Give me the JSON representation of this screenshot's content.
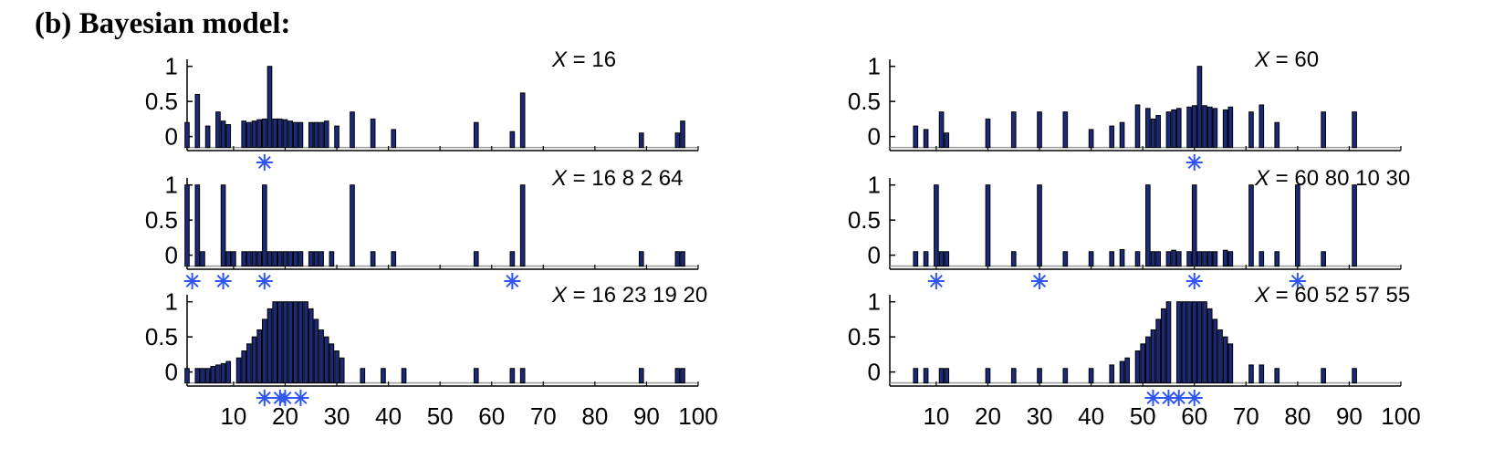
{
  "title": "(b) Bayesian model:",
  "colors": {
    "bar_fill": "#1b2a78",
    "bar_edge": "#000000",
    "star": "#2f56f0",
    "baseline": "#9a9a9a"
  },
  "chart_data": [
    {
      "type": "bar",
      "x_label_var": "X",
      "x_label_eq": "=",
      "numbers": [
        "16"
      ],
      "examples": [
        16
      ],
      "xlim": [
        1,
        100
      ],
      "ylim": [
        -0.2,
        1.1
      ],
      "yticks": [
        "1",
        "0.5",
        "0"
      ],
      "xticks": [],
      "values": [
        0.2,
        0,
        0.6,
        0,
        0.15,
        0,
        0.35,
        0.22,
        0.17,
        0,
        0,
        0.22,
        0.2,
        0.22,
        0.24,
        0.25,
        1,
        0.25,
        0.25,
        0.24,
        0.22,
        0.2,
        0.2,
        0,
        0.2,
        0.2,
        0.2,
        0.22,
        0,
        0.15,
        0,
        0,
        0.35,
        0,
        0,
        0,
        0.25,
        0,
        0,
        0,
        0.1,
        0,
        0,
        0,
        0,
        0,
        0,
        0,
        0,
        0,
        0,
        0,
        0,
        0,
        0,
        0,
        0.2,
        0,
        0,
        0,
        0,
        0,
        0,
        0.07,
        0,
        0.62,
        0,
        0,
        0,
        0,
        0,
        0,
        0,
        0,
        0,
        0,
        0,
        0,
        0,
        0,
        0,
        0,
        0,
        0,
        0,
        0,
        0,
        0,
        0.05,
        0,
        0,
        0,
        0,
        0,
        0,
        0.05,
        0.22,
        0,
        0,
        0
      ]
    },
    {
      "type": "bar",
      "x_label_var": "X",
      "x_label_eq": "=",
      "numbers": [
        "16",
        "8",
        "2",
        "64"
      ],
      "examples": [
        16,
        8,
        2,
        64
      ],
      "xlim": [
        1,
        100
      ],
      "ylim": [
        -0.2,
        1.1
      ],
      "yticks": [
        "1",
        "0.5",
        "0"
      ],
      "xticks": [],
      "values": [
        1,
        0,
        1,
        0.05,
        0,
        0,
        0,
        1,
        0.05,
        0.05,
        0,
        0.05,
        0.05,
        0.05,
        0.05,
        1,
        0.05,
        0.05,
        0.05,
        0.05,
        0.05,
        0.05,
        0.05,
        0,
        0.05,
        0.05,
        0.05,
        0,
        0.05,
        0,
        0,
        0,
        1,
        0,
        0,
        0,
        0.05,
        0,
        0,
        0,
        0.05,
        0,
        0,
        0,
        0,
        0,
        0,
        0,
        0,
        0,
        0,
        0,
        0,
        0,
        0,
        0,
        0.05,
        0,
        0,
        0,
        0,
        0,
        0,
        0.05,
        0,
        1,
        0,
        0,
        0,
        0,
        0,
        0,
        0,
        0,
        0,
        0,
        0,
        0,
        0,
        0,
        0,
        0,
        0,
        0,
        0,
        0,
        0,
        0,
        0.05,
        0,
        0,
        0,
        0,
        0,
        0,
        0.05,
        0.05,
        0,
        0,
        0
      ]
    },
    {
      "type": "bar",
      "x_label_var": "X",
      "x_label_eq": "=",
      "numbers": [
        "16",
        "23",
        "19",
        "20"
      ],
      "examples": [
        16,
        23,
        19,
        20
      ],
      "xlim": [
        1,
        100
      ],
      "ylim": [
        -0.2,
        1.1
      ],
      "yticks": [
        "1",
        "0.5",
        "0"
      ],
      "xticks": [
        "10",
        "20",
        "30",
        "40",
        "50",
        "60",
        "70",
        "80",
        "90",
        "100"
      ],
      "values": [
        0.05,
        0,
        0.05,
        0.05,
        0.05,
        0.08,
        0.1,
        0.12,
        0.15,
        0,
        0.2,
        0.3,
        0.4,
        0.5,
        0.6,
        0.75,
        0.9,
        1,
        1,
        1,
        1,
        1,
        1,
        1,
        0.9,
        0.75,
        0.6,
        0.5,
        0.4,
        0.3,
        0.2,
        0,
        0,
        0,
        0.05,
        0,
        0,
        0,
        0.05,
        0,
        0,
        0,
        0.05,
        0,
        0,
        0,
        0,
        0,
        0,
        0,
        0,
        0,
        0,
        0,
        0,
        0,
        0.05,
        0,
        0,
        0,
        0,
        0,
        0,
        0.05,
        0,
        0.05,
        0,
        0,
        0,
        0,
        0,
        0,
        0,
        0,
        0,
        0,
        0,
        0,
        0,
        0,
        0,
        0,
        0,
        0,
        0,
        0,
        0,
        0,
        0.05,
        0,
        0,
        0,
        0,
        0,
        0,
        0.05,
        0.05,
        0,
        0,
        0
      ]
    },
    {
      "type": "bar",
      "x_label_var": "X",
      "x_label_eq": "=",
      "numbers": [
        "60"
      ],
      "examples": [
        60
      ],
      "xlim": [
        1,
        100
      ],
      "ylim": [
        -0.2,
        1.1
      ],
      "yticks": [
        "1",
        "0.5",
        "0"
      ],
      "xticks": [],
      "values": [
        0,
        0,
        0,
        0,
        0,
        0.15,
        0,
        0.1,
        0,
        0,
        0.35,
        0.05,
        0,
        0,
        0,
        0,
        0,
        0,
        0,
        0.25,
        0,
        0,
        0,
        0,
        0.35,
        0,
        0,
        0,
        0,
        0.35,
        0,
        0,
        0,
        0,
        0.35,
        0,
        0,
        0,
        0,
        0.1,
        0,
        0,
        0,
        0.15,
        0,
        0.2,
        0,
        0,
        0.45,
        0,
        0.4,
        0.25,
        0.3,
        0,
        0.35,
        0.38,
        0.4,
        0,
        0.42,
        0.44,
        1,
        0.44,
        0.42,
        0.4,
        0,
        0.38,
        0.42,
        0,
        0,
        0,
        0.35,
        0,
        0.45,
        0,
        0,
        0.2,
        0,
        0,
        0,
        0,
        0,
        0,
        0,
        0,
        0.35,
        0,
        0,
        0,
        0,
        0,
        0.35,
        0,
        0,
        0,
        0,
        0,
        0,
        0,
        0,
        0
      ]
    },
    {
      "type": "bar",
      "x_label_var": "X",
      "x_label_eq": "=",
      "numbers": [
        "60",
        "80",
        "10",
        "30"
      ],
      "examples": [
        60,
        80,
        10,
        30
      ],
      "xlim": [
        1,
        100
      ],
      "ylim": [
        -0.2,
        1.1
      ],
      "yticks": [
        "1",
        "0.5",
        "0"
      ],
      "xticks": [],
      "values": [
        0,
        0,
        0,
        0,
        0,
        0.05,
        0,
        0.05,
        0,
        1,
        0.05,
        0.05,
        0,
        0,
        0,
        0,
        0,
        0,
        0,
        1,
        0,
        0,
        0,
        0,
        0.05,
        0,
        0,
        0,
        0,
        1,
        0,
        0,
        0,
        0,
        0.05,
        0,
        0,
        0,
        0,
        0.05,
        0,
        0,
        0,
        0.05,
        0,
        0.08,
        0,
        0,
        0.05,
        0,
        1,
        0.05,
        0.05,
        0,
        0.05,
        0.07,
        0.05,
        0,
        0.05,
        1,
        0.05,
        0.05,
        0.05,
        0.05,
        0,
        0.07,
        0.05,
        0,
        0,
        0,
        1,
        0,
        0.05,
        0,
        0,
        0.05,
        0,
        0,
        0,
        1,
        0,
        0,
        0,
        0,
        0.05,
        0,
        0,
        0,
        0,
        0,
        1,
        0,
        0,
        0,
        0,
        0,
        0,
        0,
        0,
        0
      ]
    },
    {
      "type": "bar",
      "x_label_var": "X",
      "x_label_eq": "=",
      "numbers": [
        "60",
        "52",
        "57",
        "55"
      ],
      "examples": [
        60,
        52,
        57,
        55
      ],
      "xlim": [
        1,
        100
      ],
      "ylim": [
        -0.2,
        1.1
      ],
      "yticks": [
        "1",
        "0.5",
        "0"
      ],
      "xticks": [
        "10",
        "20",
        "30",
        "40",
        "50",
        "60",
        "70",
        "80",
        "90",
        "100"
      ],
      "values": [
        0,
        0,
        0,
        0,
        0,
        0.05,
        0,
        0.05,
        0,
        0,
        0.05,
        0.05,
        0,
        0,
        0,
        0,
        0,
        0,
        0,
        0.05,
        0,
        0,
        0,
        0,
        0.05,
        0,
        0,
        0,
        0,
        0.05,
        0,
        0,
        0,
        0,
        0.05,
        0,
        0,
        0,
        0,
        0.05,
        0,
        0,
        0,
        0.1,
        0,
        0.15,
        0.2,
        0,
        0.3,
        0.4,
        0.5,
        0.6,
        0.75,
        0.9,
        1,
        0,
        1,
        1,
        1,
        1,
        1,
        1,
        0.9,
        0.75,
        0.6,
        0.5,
        0.4,
        0,
        0,
        0,
        0.1,
        0,
        0.1,
        0,
        0,
        0.05,
        0,
        0,
        0,
        0,
        0,
        0,
        0,
        0,
        0.05,
        0,
        0,
        0,
        0,
        0,
        0.05,
        0,
        0,
        0,
        0,
        0,
        0,
        0,
        0,
        0
      ]
    }
  ]
}
